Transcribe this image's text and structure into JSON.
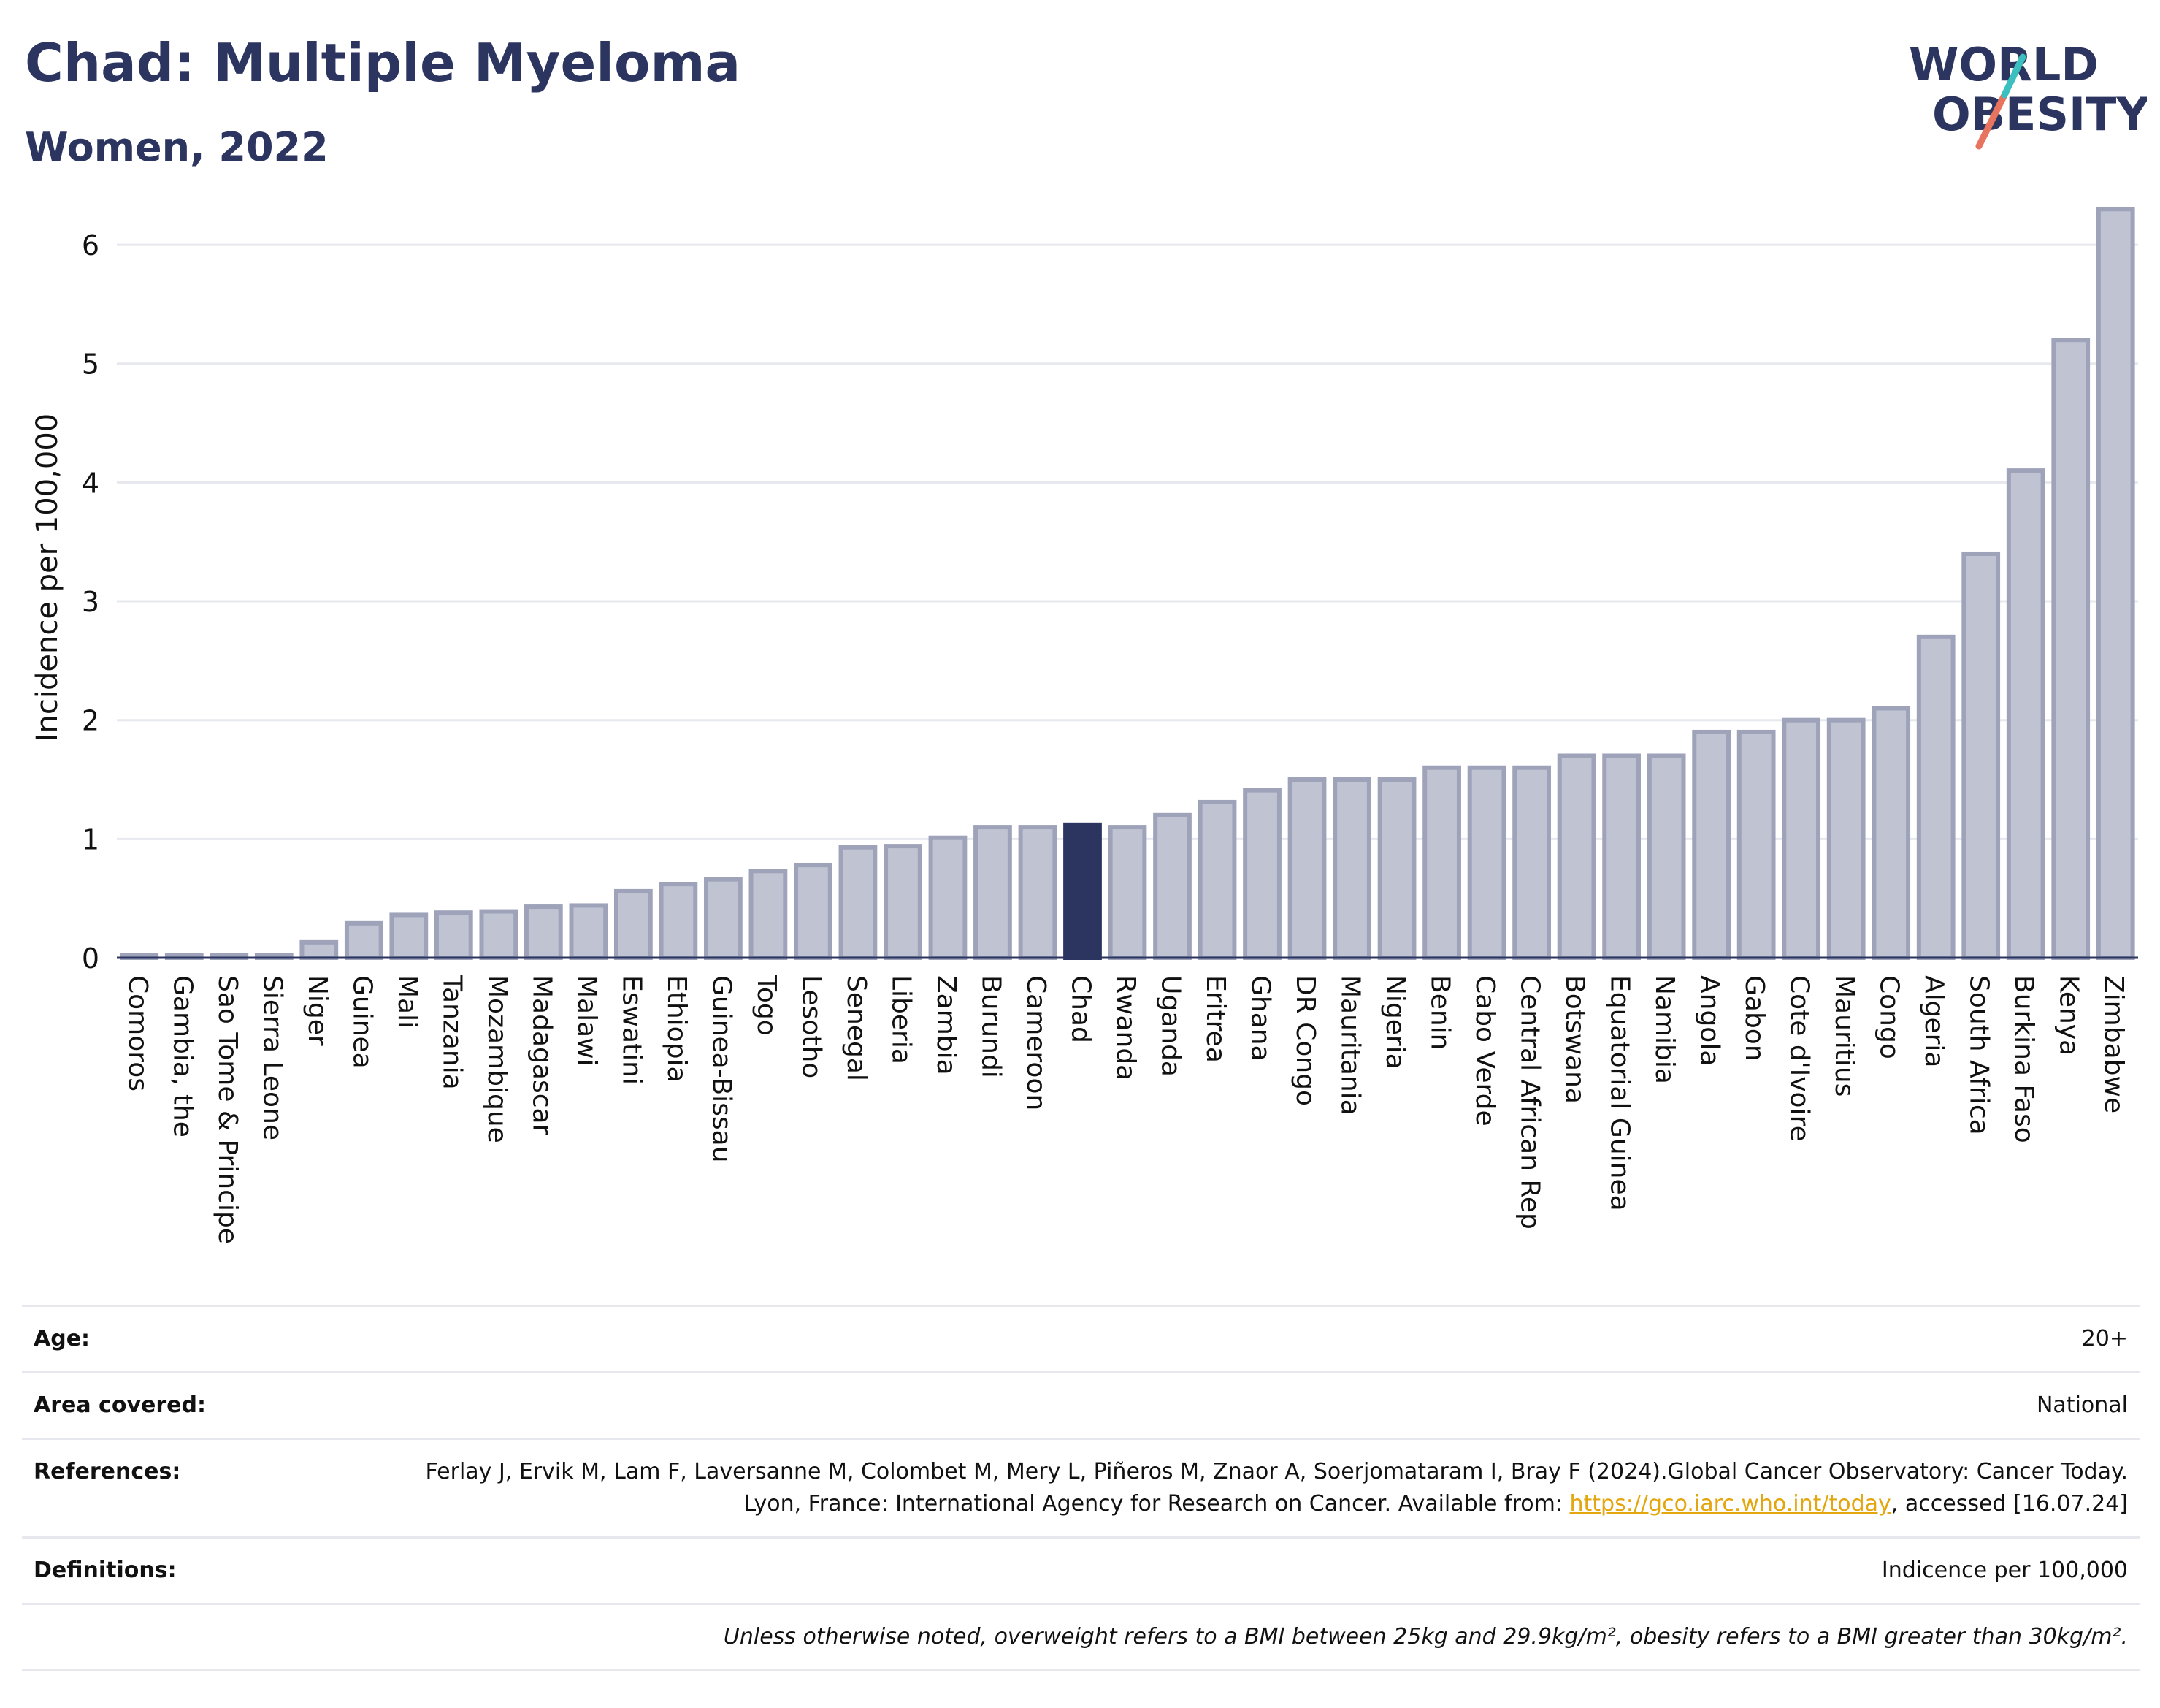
{
  "header": {
    "title": "Chad: Multiple Myeloma",
    "subtitle": "Women, 2022",
    "logo_line1": "WORLD",
    "logo_line2": "OBESITY"
  },
  "colors": {
    "bar_fill": "#bfc3d2",
    "bar_stroke": "#9ea3ba",
    "highlight": "#2b3560",
    "title": "#2b3560",
    "logo_teal": "#3bbfbf",
    "logo_coral": "#e8735f"
  },
  "chart_data": {
    "type": "bar",
    "ylabel": "Incidence per 100,000",
    "xlabel": "",
    "ylim": [
      0,
      6.4
    ],
    "yticks": [
      0,
      1,
      2,
      3,
      4,
      5,
      6
    ],
    "grid": true,
    "highlight": "Chad",
    "categories": [
      "Comoros",
      "Gambia, the",
      "Sao Tome & Principe",
      "Sierra Leone",
      "Niger",
      "Guinea",
      "Mali",
      "Tanzania",
      "Mozambique",
      "Madagascar",
      "Malawi",
      "Eswatini",
      "Ethiopia",
      "Guinea-Bissau",
      "Togo",
      "Lesotho",
      "Senegal",
      "Liberia",
      "Zambia",
      "Burundi",
      "Cameroon",
      "Chad",
      "Rwanda",
      "Uganda",
      "Eritrea",
      "Ghana",
      "DR Congo",
      "Mauritania",
      "Nigeria",
      "Benin",
      "Cabo Verde",
      "Central African Rep",
      "Botswana",
      "Equatorial Guinea",
      "Namibia",
      "Angola",
      "Gabon",
      "Cote d'Ivoire",
      "Mauritius",
      "Congo",
      "Algeria",
      "South Africa",
      "Burkina Faso",
      "Kenya",
      "Zimbabwe"
    ],
    "values": [
      0.02,
      0.02,
      0.02,
      0.02,
      0.13,
      0.29,
      0.36,
      0.38,
      0.39,
      0.43,
      0.44,
      0.56,
      0.62,
      0.66,
      0.73,
      0.78,
      0.93,
      0.94,
      1.01,
      1.1,
      1.1,
      1.12,
      1.1,
      1.2,
      1.31,
      1.41,
      1.5,
      1.5,
      1.5,
      1.6,
      1.6,
      1.6,
      1.7,
      1.7,
      1.7,
      1.9,
      1.9,
      2.0,
      2.0,
      2.1,
      2.7,
      3.4,
      4.1,
      5.2,
      6.3
    ]
  },
  "info": {
    "age_label": "Age:",
    "age_value": "20+",
    "area_label": "Area covered:",
    "area_value": "National",
    "references_label": "References:",
    "references_text": "Ferlay J, Ervik M, Lam F, Laversanne M, Colombet M, Mery L, Piñeros M, Znaor A, Soerjomataram I, Bray F (2024).Global Cancer Observatory: Cancer Today. Lyon, France: International Agency for Research on Cancer. Available from:",
    "references_link": "https://gco.iarc.who.int/today",
    "references_tail": ", accessed [16.07.24]",
    "definitions_label": "Definitions:",
    "definitions_value": "Indicence per 100,000",
    "note": "Unless otherwise noted, overweight refers to a BMI between 25kg and 29.9kg/m², obesity refers to a BMI greater than 30kg/m²."
  }
}
